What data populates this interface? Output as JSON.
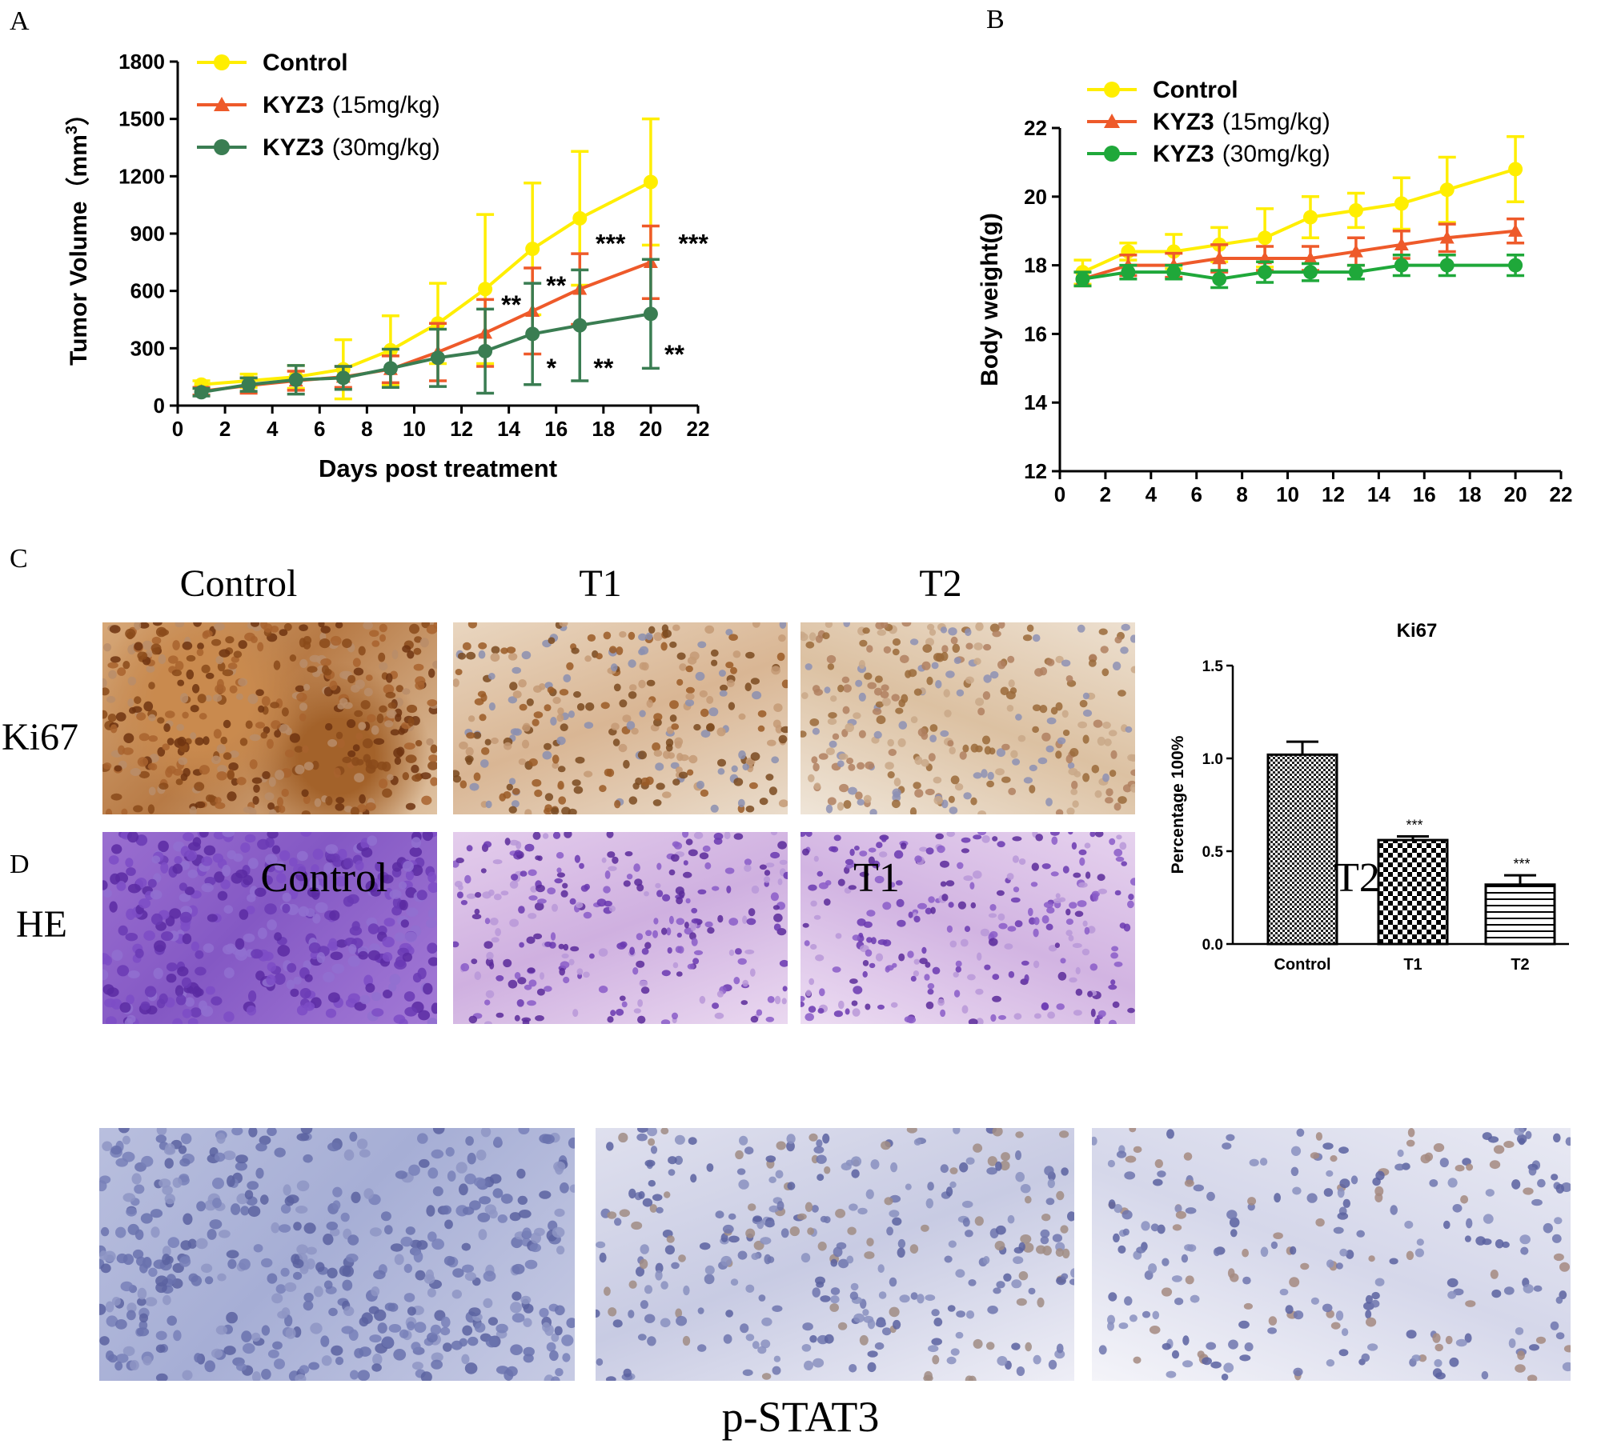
{
  "panels": {
    "A": "A",
    "B": "B",
    "C": "C",
    "D": "D"
  },
  "colors": {
    "control": "#ffee00",
    "kyz3_15": "#ee5a2a",
    "kyz3_30_A": "#3a7d52",
    "kyz3_30_B": "#1fa83a"
  },
  "chart_data": [
    {
      "id": "A",
      "type": "line",
      "title": "",
      "xlabel": "Days post treatment",
      "ylabel": "Tumor Volume（mm³）",
      "ylabel_parts": {
        "main": "Tumor Volume（mm",
        "sup": "3",
        "end": "）"
      },
      "xlim": [
        0,
        22
      ],
      "ylim": [
        0,
        1800
      ],
      "xticks": [
        "0",
        "2",
        "4",
        "6",
        "8",
        "10",
        "12",
        "14",
        "16",
        "18",
        "20",
        "22"
      ],
      "yticks": [
        "0",
        "300",
        "600",
        "900",
        "1200",
        "1500",
        "1800"
      ],
      "legend": [
        {
          "bold": "Control",
          "rest": ""
        },
        {
          "bold": "KYZ3",
          "rest": "(15mg/kg)"
        },
        {
          "bold": "KYZ3",
          "rest": "(30mg/kg)"
        }
      ],
      "x": [
        1,
        3,
        5,
        7,
        9,
        11,
        13,
        15,
        17,
        20
      ],
      "series": [
        {
          "name": "Control",
          "marker": "circle",
          "values": [
            110,
            130,
            150,
            190,
            290,
            430,
            610,
            820,
            980,
            1170
          ],
          "errors": [
            20,
            35,
            60,
            155,
            180,
            210,
            390,
            345,
            350,
            330
          ]
        },
        {
          "name": "KYZ3 (15mg/kg)",
          "marker": "triangle",
          "values": [
            75,
            105,
            130,
            150,
            190,
            280,
            380,
            495,
            610,
            750
          ],
          "errors": [
            20,
            40,
            50,
            55,
            70,
            150,
            175,
            225,
            185,
            190
          ]
        },
        {
          "name": "KYZ3 (30mg/kg)",
          "marker": "circle",
          "values": [
            70,
            110,
            135,
            145,
            195,
            250,
            285,
            375,
            420,
            480
          ],
          "errors": [
            20,
            35,
            75,
            60,
            100,
            150,
            220,
            265,
            290,
            285
          ]
        }
      ],
      "annotations": [
        {
          "text": "**",
          "x": 14.1,
          "y": 540
        },
        {
          "text": "**",
          "x": 16.0,
          "y": 640
        },
        {
          "text": "***",
          "x": 18.3,
          "y": 860
        },
        {
          "text": "***",
          "x": 21.8,
          "y": 860
        },
        {
          "text": "*",
          "x": 15.8,
          "y": 210
        },
        {
          "text": "**",
          "x": 18.0,
          "y": 210
        },
        {
          "text": "**",
          "x": 21.0,
          "y": 280
        }
      ]
    },
    {
      "id": "B",
      "type": "line",
      "title": "",
      "xlabel": "",
      "ylabel": "Body weight(g)",
      "xlim": [
        0,
        22
      ],
      "ylim": [
        12,
        22
      ],
      "xticks": [
        "0",
        "2",
        "4",
        "6",
        "8",
        "10",
        "12",
        "14",
        "16",
        "18",
        "20",
        "22"
      ],
      "yticks": [
        "12",
        "14",
        "16",
        "18",
        "20",
        "22"
      ],
      "legend": [
        {
          "bold": "Control",
          "rest": ""
        },
        {
          "bold": "KYZ3",
          "rest": "(15mg/kg)"
        },
        {
          "bold": "KYZ3",
          "rest": "(30mg/kg)"
        }
      ],
      "x": [
        1,
        3,
        5,
        7,
        9,
        11,
        13,
        15,
        17,
        20
      ],
      "series": [
        {
          "name": "Control",
          "marker": "circle",
          "values": [
            17.8,
            18.4,
            18.4,
            18.6,
            18.8,
            19.4,
            19.6,
            19.8,
            20.2,
            20.8
          ],
          "errors": [
            0.35,
            0.25,
            0.5,
            0.5,
            0.85,
            0.6,
            0.5,
            0.75,
            0.95,
            0.95
          ]
        },
        {
          "name": "KYZ3 (15mg/kg)",
          "marker": "triangle",
          "values": [
            17.6,
            18.0,
            18.0,
            18.2,
            18.2,
            18.2,
            18.4,
            18.6,
            18.8,
            19.0
          ],
          "errors": [
            0.2,
            0.3,
            0.35,
            0.4,
            0.35,
            0.35,
            0.4,
            0.4,
            0.4,
            0.35
          ]
        },
        {
          "name": "KYZ3 (30mg/kg)",
          "marker": "circle",
          "values": [
            17.6,
            17.8,
            17.8,
            17.6,
            17.8,
            17.8,
            17.8,
            18.0,
            18.0,
            18.0
          ],
          "errors": [
            0.2,
            0.2,
            0.2,
            0.25,
            0.3,
            0.25,
            0.2,
            0.3,
            0.3,
            0.3
          ]
        }
      ]
    },
    {
      "id": "C-bar",
      "type": "bar",
      "title": "Ki67",
      "xlabel": "",
      "ylabel": "Percentage 100%",
      "ylim": [
        0,
        1.5
      ],
      "yticks": [
        "0.0",
        "0.5",
        "1.0",
        "1.5"
      ],
      "categories": [
        "Control",
        "T1",
        "T2"
      ],
      "values": [
        1.02,
        0.56,
        0.32
      ],
      "errors": [
        0.07,
        0.02,
        0.05
      ],
      "significance": [
        "",
        "***",
        "***"
      ]
    }
  ],
  "figure_c": {
    "columns": [
      "Control",
      "T1",
      "T2"
    ],
    "rows": [
      "Ki67",
      "HE"
    ]
  },
  "figure_d": {
    "columns": [
      "Control",
      "T1",
      "T2"
    ],
    "caption": "p-STAT3"
  }
}
